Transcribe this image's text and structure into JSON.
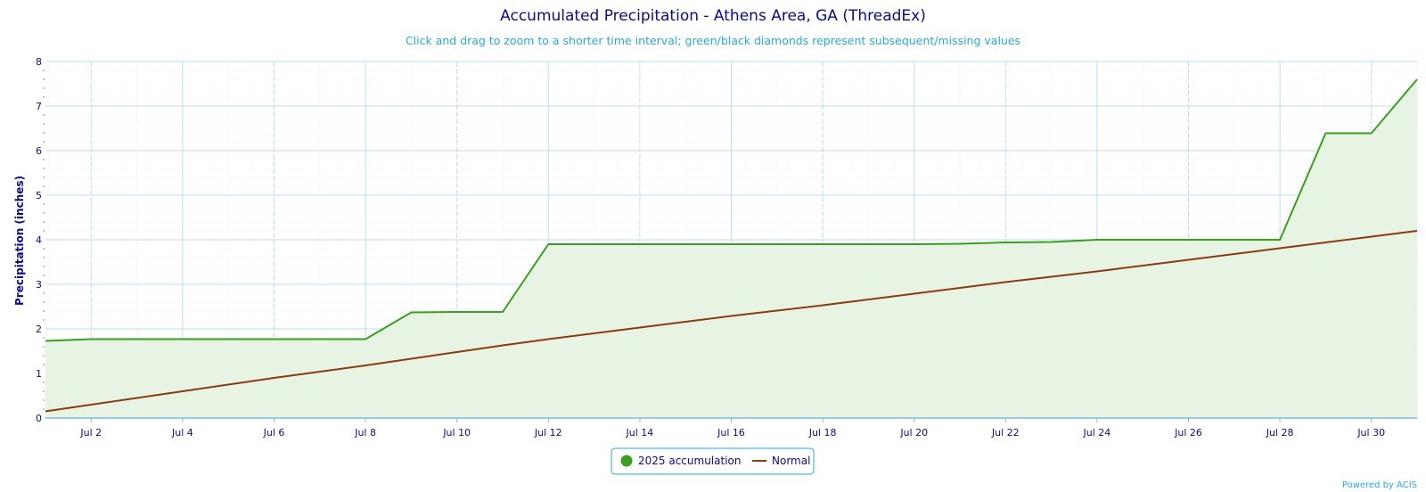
{
  "chart_data": {
    "type": "area",
    "title": "Accumulated Precipitation - Athens Area, GA (ThreadEx)",
    "subtitle": "Click and drag to zoom to a shorter time interval; green/black diamonds represent subsequent/missing values",
    "xlabel": "",
    "ylabel": "Precipitation (inches)",
    "xlim": [
      1,
      31
    ],
    "ylim": [
      0,
      8
    ],
    "yticks": [
      0,
      1,
      2,
      3,
      4,
      5,
      6,
      7,
      8
    ],
    "xticks": [
      {
        "day": 2,
        "label": "Jul 2"
      },
      {
        "day": 4,
        "label": "Jul 4"
      },
      {
        "day": 6,
        "label": "Jul 6"
      },
      {
        "day": 8,
        "label": "Jul 8"
      },
      {
        "day": 10,
        "label": "Jul 10"
      },
      {
        "day": 12,
        "label": "Jul 12"
      },
      {
        "day": 14,
        "label": "Jul 14"
      },
      {
        "day": 16,
        "label": "Jul 16"
      },
      {
        "day": 18,
        "label": "Jul 18"
      },
      {
        "day": 20,
        "label": "Jul 20"
      },
      {
        "day": 22,
        "label": "Jul 22"
      },
      {
        "day": 24,
        "label": "Jul 24"
      },
      {
        "day": 26,
        "label": "Jul 26"
      },
      {
        "day": 28,
        "label": "Jul 28"
      },
      {
        "day": 30,
        "label": "Jul 30"
      }
    ],
    "grid": true,
    "legend_position": "bottom-center",
    "series": [
      {
        "name": "2025 accumulation",
        "color": "#3a9e1f",
        "fill": "#e8f4e3",
        "x": [
          1,
          2,
          3,
          4,
          5,
          6,
          7,
          8,
          9,
          10,
          11,
          12,
          13,
          14,
          15,
          16,
          17,
          18,
          19,
          20,
          21,
          22,
          23,
          24,
          25,
          26,
          27,
          28,
          29,
          30,
          31
        ],
        "values": [
          1.73,
          1.77,
          1.77,
          1.77,
          1.77,
          1.77,
          1.77,
          1.77,
          2.37,
          2.38,
          2.38,
          3.9,
          3.9,
          3.9,
          3.9,
          3.9,
          3.9,
          3.9,
          3.9,
          3.9,
          3.91,
          3.94,
          3.95,
          4.0,
          4.0,
          4.0,
          4.0,
          4.0,
          6.39,
          6.39,
          7.6
        ]
      },
      {
        "name": "Normal",
        "color": "#8b3a12",
        "x": [
          1,
          2,
          3,
          4,
          5,
          6,
          7,
          8,
          9,
          10,
          11,
          12,
          13,
          14,
          15,
          16,
          17,
          18,
          19,
          20,
          21,
          22,
          23,
          24,
          25,
          26,
          27,
          28,
          29,
          30,
          31
        ],
        "values": [
          0.15,
          0.3,
          0.45,
          0.6,
          0.75,
          0.9,
          1.04,
          1.18,
          1.33,
          1.48,
          1.63,
          1.77,
          1.9,
          2.03,
          2.16,
          2.29,
          2.41,
          2.53,
          2.66,
          2.79,
          2.92,
          3.05,
          3.17,
          3.29,
          3.42,
          3.55,
          3.68,
          3.81,
          3.94,
          4.07,
          4.2
        ]
      }
    ]
  },
  "credits": "Powered by ACIS"
}
